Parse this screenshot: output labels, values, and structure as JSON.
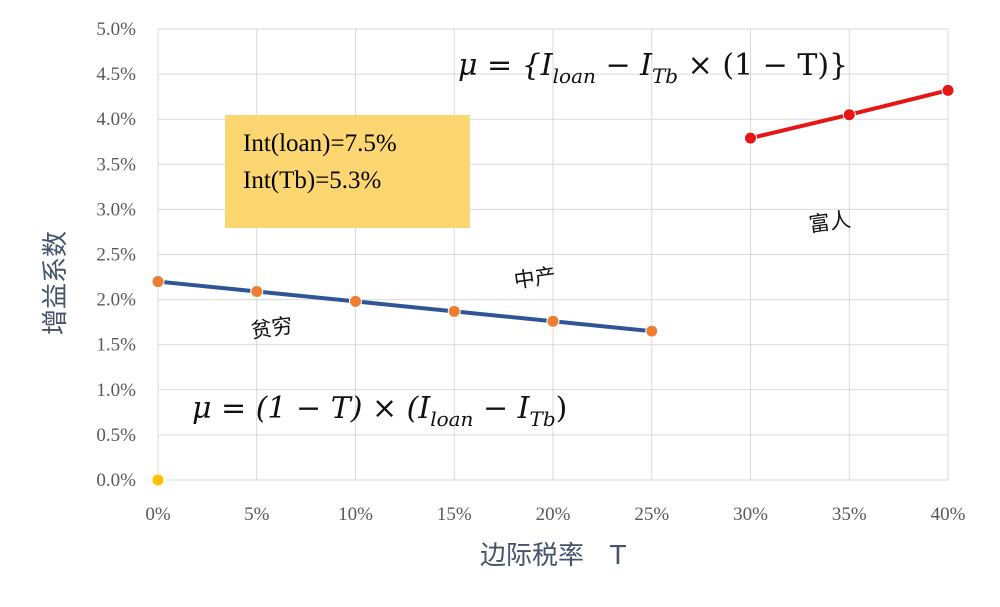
{
  "chart_data": {
    "type": "line",
    "xlabel": "边际税率　T",
    "ylabel": "增益系数",
    "x_ticks": [
      "0%",
      "5%",
      "10%",
      "15%",
      "20%",
      "25%",
      "30%",
      "35%",
      "40%"
    ],
    "y_ticks": [
      "0.0%",
      "0.5%",
      "1.0%",
      "1.5%",
      "2.0%",
      "2.5%",
      "3.0%",
      "3.5%",
      "4.0%",
      "4.5%",
      "5.0%"
    ],
    "xlim": [
      0,
      40
    ],
    "ylim": [
      0,
      5.0
    ],
    "grid": true,
    "series": [
      {
        "color": "#2f5597",
        "marker_color": "#ed7d31",
        "x": [
          0,
          5,
          10,
          15,
          20,
          25
        ],
        "y": [
          2.2,
          2.09,
          1.98,
          1.87,
          1.76,
          1.65
        ]
      },
      {
        "color": "#e81515",
        "marker_color": "#e81515",
        "x": [
          30,
          35,
          40
        ],
        "y": [
          3.79,
          4.05,
          4.32
        ]
      },
      {
        "color": "#ffc000",
        "marker_color": "#ffc000",
        "x": [
          0
        ],
        "y": [
          0.0
        ]
      }
    ],
    "annotations": {
      "poor": "贫穷",
      "middle": "中产",
      "rich": "富人"
    }
  },
  "note": {
    "line1": "Int(loan)=7.5%",
    "line2": "Int(Tb)=5.3%"
  },
  "formulas": {
    "top": {
      "lhs": "μ = {I",
      "sub1": "loan",
      "mid": " − I",
      "sub2": "Tb",
      "rhs": " × (1 − T)}"
    },
    "bottom": {
      "lhs": "μ = (1 − T) × (I",
      "sub1": "loan",
      "mid": " − I",
      "sub2": "Tb",
      "rhs": ")"
    }
  }
}
